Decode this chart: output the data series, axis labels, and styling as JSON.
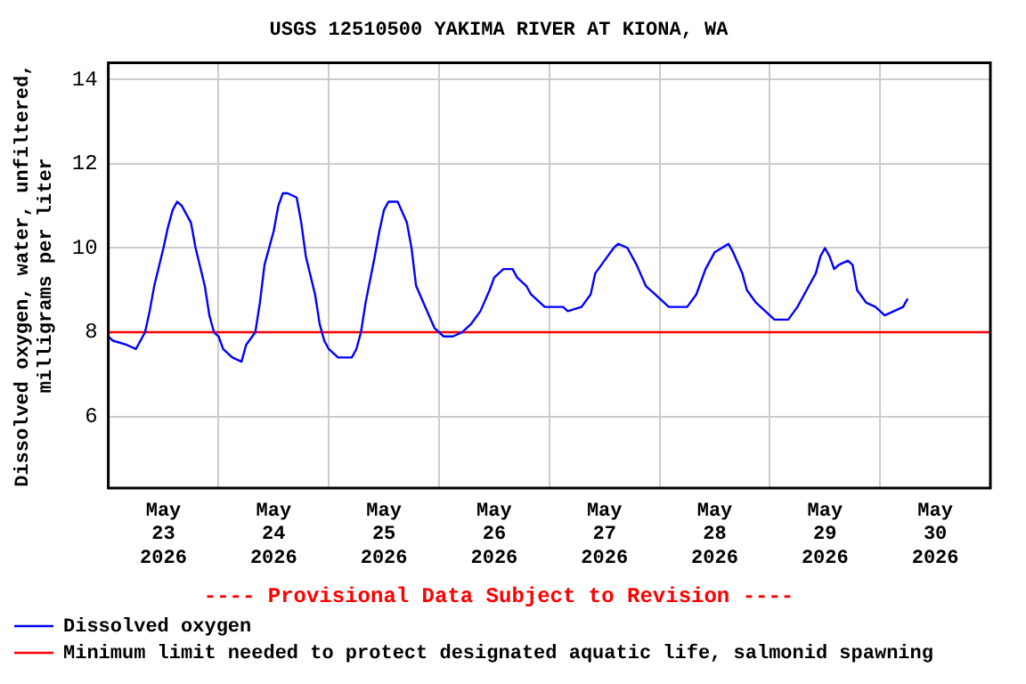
{
  "chart_data": {
    "type": "line",
    "title": "USGS 12510500 YAKIMA RIVER AT KIONA, WA",
    "ylabel": "Dissolved oxygen, water, unfiltered,\nmilligrams per liter",
    "annotations": [
      "---- Provisional Data Subject to Revision ----"
    ],
    "xlim": [
      "2026-05-23T00:00",
      "2026-05-31T00:00"
    ],
    "xticks": [
      {
        "value": "2026-05-23T12:00",
        "label": "May 23 2026"
      },
      {
        "value": "2026-05-24T00:00",
        "label": null
      },
      {
        "value": "2026-05-24T12:00",
        "label": "May 24 2026"
      },
      {
        "value": "2026-05-25T00:00",
        "label": null
      },
      {
        "value": "2026-05-25T12:00",
        "label": "May 25 2026"
      },
      {
        "value": "2026-05-26T00:00",
        "label": null
      },
      {
        "value": "2026-05-26T12:00",
        "label": "May 26 2026"
      },
      {
        "value": "2026-05-27T00:00",
        "label": null
      },
      {
        "value": "2026-05-27T12:00",
        "label": "May 27 2026"
      },
      {
        "value": "2026-05-28T00:00",
        "label": null
      },
      {
        "value": "2026-05-28T12:00",
        "label": "May 28 2026"
      },
      {
        "value": "2026-05-29T00:00",
        "label": null
      },
      {
        "value": "2026-05-29T12:00",
        "label": "May 29 2026"
      },
      {
        "value": "2026-05-30T00:00",
        "label": null
      },
      {
        "value": "2026-05-30T12:00",
        "label": "May 30 2026"
      }
    ],
    "ylim": [
      4.3,
      14.4
    ],
    "yticks": [
      6,
      8,
      10,
      12,
      14
    ],
    "grid": true,
    "legend": "bottom",
    "marker": "none",
    "line_style": "solid",
    "x": [
      "2026-05-23T00:00",
      "2026-05-23T01:00",
      "2026-05-23T04:00",
      "2026-05-23T06:00",
      "2026-05-23T08:00",
      "2026-05-23T09:00",
      "2026-05-23T10:00",
      "2026-05-23T12:00",
      "2026-05-23T13:00",
      "2026-05-23T14:00",
      "2026-05-23T15:00",
      "2026-05-23T16:00",
      "2026-05-23T17:00",
      "2026-05-23T18:00",
      "2026-05-23T19:00",
      "2026-05-23T21:00",
      "2026-05-23T22:00",
      "2026-05-23T23:00",
      "2026-05-24T00:00",
      "2026-05-24T01:00",
      "2026-05-24T03:00",
      "2026-05-24T05:00",
      "2026-05-24T06:00",
      "2026-05-24T08:00",
      "2026-05-24T09:00",
      "2026-05-24T10:00",
      "2026-05-24T12:00",
      "2026-05-24T13:00",
      "2026-05-24T14:00",
      "2026-05-24T15:00",
      "2026-05-24T17:00",
      "2026-05-24T18:00",
      "2026-05-24T19:00",
      "2026-05-24T21:00",
      "2026-05-24T22:00",
      "2026-05-24T23:00",
      "2026-05-25T00:00",
      "2026-05-25T02:00",
      "2026-05-25T05:00",
      "2026-05-25T06:00",
      "2026-05-25T07:00",
      "2026-05-25T08:00",
      "2026-05-25T10:00",
      "2026-05-25T11:00",
      "2026-05-25T12:00",
      "2026-05-25T13:00",
      "2026-05-25T15:00",
      "2026-05-25T17:00",
      "2026-05-25T18:00",
      "2026-05-25T19:00",
      "2026-05-25T21:00",
      "2026-05-25T23:00",
      "2026-05-26T00:00",
      "2026-05-26T01:00",
      "2026-05-26T03:00",
      "2026-05-26T05:00",
      "2026-05-26T07:00",
      "2026-05-26T09:00",
      "2026-05-26T11:00",
      "2026-05-26T12:00",
      "2026-05-26T14:00",
      "2026-05-26T16:00",
      "2026-05-26T17:00",
      "2026-05-26T19:00",
      "2026-05-26T20:00",
      "2026-05-26T23:00",
      "2026-05-27T03:00",
      "2026-05-27T04:00",
      "2026-05-27T07:00",
      "2026-05-27T09:00",
      "2026-05-27T10:00",
      "2026-05-27T12:00",
      "2026-05-27T14:00",
      "2026-05-27T15:00",
      "2026-05-27T17:00",
      "2026-05-27T19:00",
      "2026-05-27T21:00",
      "2026-05-27T23:00",
      "2026-05-28T01:00",
      "2026-05-28T02:00",
      "2026-05-28T06:00",
      "2026-05-28T08:00",
      "2026-05-28T10:00",
      "2026-05-28T12:00",
      "2026-05-28T15:00",
      "2026-05-28T16:00",
      "2026-05-28T18:00",
      "2026-05-28T19:00",
      "2026-05-28T21:00",
      "2026-05-29T00:00",
      "2026-05-29T01:00",
      "2026-05-29T04:00",
      "2026-05-29T06:00",
      "2026-05-29T08:00",
      "2026-05-29T10:00",
      "2026-05-29T11:00",
      "2026-05-29T12:00",
      "2026-05-29T13:00",
      "2026-05-29T14:00",
      "2026-05-29T15:00",
      "2026-05-29T17:00",
      "2026-05-29T18:00",
      "2026-05-29T19:00",
      "2026-05-29T21:00",
      "2026-05-29T23:00",
      "2026-05-30T00:00",
      "2026-05-30T01:00",
      "2026-05-30T03:00",
      "2026-05-30T05:00",
      "2026-05-30T06:00"
    ],
    "series": [
      {
        "name": "Dissolved oxygen",
        "color": "#0000ff",
        "values": [
          7.9,
          7.8,
          7.7,
          7.6,
          8.0,
          8.5,
          9.1,
          10.0,
          10.5,
          10.9,
          11.1,
          11.0,
          10.8,
          10.6,
          10.0,
          9.1,
          8.4,
          8.0,
          7.9,
          7.6,
          7.4,
          7.3,
          7.7,
          8.0,
          8.7,
          9.6,
          10.4,
          11.0,
          11.3,
          11.3,
          11.2,
          10.6,
          9.8,
          8.9,
          8.2,
          7.8,
          7.6,
          7.4,
          7.4,
          7.6,
          8.0,
          8.7,
          9.8,
          10.4,
          10.9,
          11.1,
          11.1,
          10.6,
          10.0,
          9.1,
          8.6,
          8.1,
          8.0,
          7.9,
          7.9,
          8.0,
          8.2,
          8.5,
          9.0,
          9.3,
          9.5,
          9.5,
          9.3,
          9.1,
          8.9,
          8.6,
          8.6,
          8.5,
          8.6,
          8.9,
          9.4,
          9.7,
          10.0,
          10.1,
          10.0,
          9.6,
          9.1,
          8.9,
          8.7,
          8.6,
          8.6,
          8.9,
          9.5,
          9.9,
          10.1,
          9.9,
          9.4,
          9.0,
          8.7,
          8.4,
          8.3,
          8.3,
          8.6,
          9.0,
          9.4,
          9.8,
          10.0,
          9.8,
          9.5,
          9.6,
          9.7,
          9.6,
          9.0,
          8.7,
          8.6,
          8.5,
          8.4,
          8.5,
          8.6,
          8.8
        ]
      }
    ],
    "ref_lines": [
      {
        "axis": "y",
        "value": 8,
        "label": "Minimum limit needed to protect designated aquatic life, salmonid spawning",
        "color": "#ff0000"
      }
    ]
  }
}
